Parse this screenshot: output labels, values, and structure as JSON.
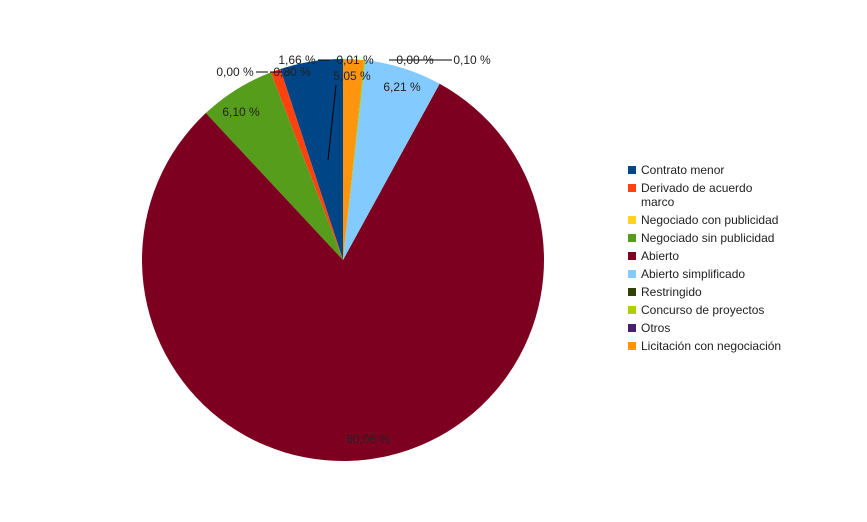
{
  "chart_data": {
    "type": "pie",
    "categories": [
      "Contrato menor",
      "Derivado de acuerdo marco",
      "Negociado con publicidad",
      "Negociado sin publicidad",
      "Abierto",
      "Abierto simplificado",
      "Restringido",
      "Concurso de proyectos",
      "Otros",
      "Licitación con negociación"
    ],
    "values": [
      5.05,
      0.8,
      0.0,
      6.1,
      80.06,
      6.21,
      0.0,
      0.1,
      0.01,
      1.66
    ],
    "value_labels": [
      "5,05 %",
      "0,80 %",
      "0,00 %",
      "6,10 %",
      "80,06 %",
      "6,21 %",
      "0,00 %",
      "0,10 %",
      "0,01 %",
      "1,66 %"
    ],
    "colors": [
      "#004586",
      "#ff420e",
      "#ffd320",
      "#579d1c",
      "#7e0021",
      "#83caff",
      "#314004",
      "#aecf00",
      "#4b1f6f",
      "#ff950e"
    ],
    "legend": "right"
  }
}
